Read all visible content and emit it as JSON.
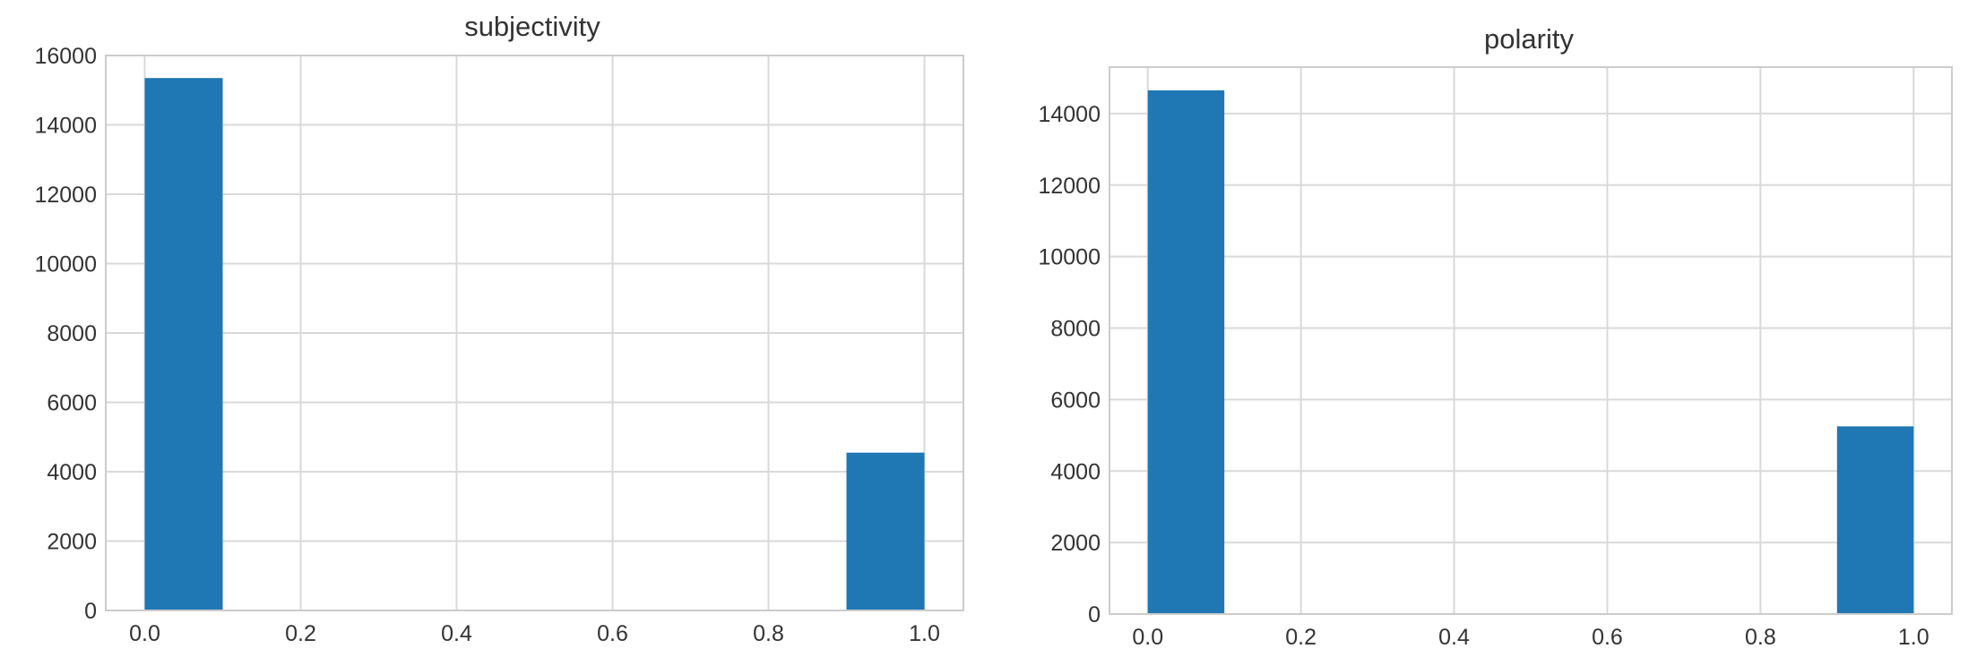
{
  "chart_data": [
    {
      "type": "bar",
      "title": "subjectivity",
      "xlabel": "",
      "ylabel": "",
      "bar_color": "#1f77b4",
      "grid": true,
      "xlim": [
        -0.05,
        1.05
      ],
      "ylim": [
        0,
        16000
      ],
      "x_ticks": [
        "0.0",
        "0.2",
        "0.4",
        "0.6",
        "0.8",
        "1.0"
      ],
      "y_ticks": [
        "0",
        "2000",
        "4000",
        "6000",
        "8000",
        "10000",
        "12000",
        "14000",
        "16000"
      ],
      "bins": [
        {
          "x0": 0.0,
          "x1": 0.1,
          "value": 15350
        },
        {
          "x0": 0.9,
          "x1": 1.0,
          "value": 4550
        }
      ]
    },
    {
      "type": "bar",
      "title": "polarity",
      "xlabel": "",
      "ylabel": "",
      "bar_color": "#1f77b4",
      "grid": true,
      "xlim": [
        -0.05,
        1.05
      ],
      "ylim": [
        0,
        15300
      ],
      "x_ticks": [
        "0.0",
        "0.2",
        "0.4",
        "0.6",
        "0.8",
        "1.0"
      ],
      "y_ticks": [
        "0",
        "2000",
        "4000",
        "6000",
        "8000",
        "10000",
        "12000",
        "14000"
      ],
      "bins": [
        {
          "x0": 0.0,
          "x1": 0.1,
          "value": 14650
        },
        {
          "x0": 0.9,
          "x1": 1.0,
          "value": 5250
        }
      ]
    }
  ]
}
